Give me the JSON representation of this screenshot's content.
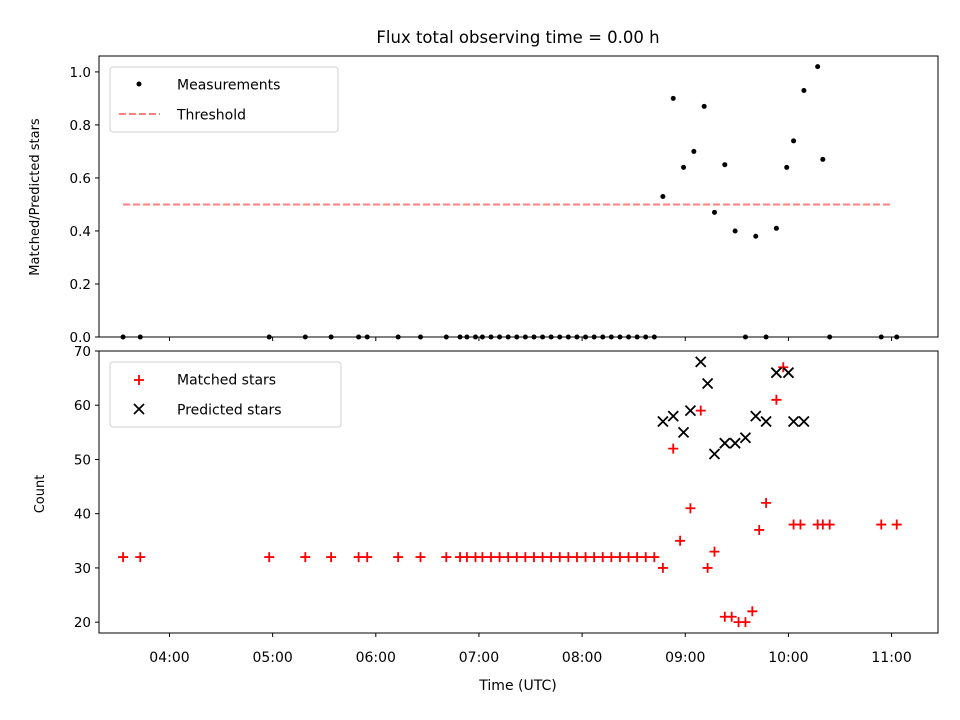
{
  "title": "Flux total observing time = 0.00 h",
  "colors": {
    "measurement": "#000000",
    "threshold": "#ff7f7f",
    "matched": "#ff0000",
    "predicted": "#000000"
  },
  "chart_data": [
    {
      "type": "scatter",
      "ylabel": "Matched/Predicted stars",
      "ylim": [
        0,
        1.06
      ],
      "yticks": [
        "0.0",
        "0.2",
        "0.4",
        "0.6",
        "0.8",
        "1.0"
      ],
      "xlim": [
        "03:19",
        "11:27"
      ],
      "grid": false,
      "legend": {
        "position": "top-left",
        "entries": [
          "Measurements",
          "Threshold"
        ]
      },
      "threshold": {
        "name": "Threshold",
        "y": 0.5,
        "x": [
          "03:33",
          "10:59"
        ]
      },
      "series": [
        {
          "name": "Measurements",
          "marker": "dot",
          "x": [
            "03:33",
            "03:43",
            "04:58",
            "05:19",
            "05:34",
            "05:50",
            "05:55",
            "06:13",
            "06:26",
            "06:41",
            "06:49",
            "06:53",
            "06:58",
            "07:02",
            "07:07",
            "07:12",
            "07:17",
            "07:22",
            "07:27",
            "07:32",
            "07:37",
            "07:42",
            "07:47",
            "07:52",
            "07:57",
            "08:02",
            "08:07",
            "08:12",
            "08:17",
            "08:22",
            "08:27",
            "08:32",
            "08:37",
            "08:42",
            "08:47",
            "08:53",
            "08:59",
            "09:05",
            "09:11",
            "09:17",
            "09:23",
            "09:29",
            "09:35",
            "09:41",
            "09:47",
            "09:53",
            "09:59",
            "10:03",
            "10:09",
            "10:17",
            "10:20",
            "10:24",
            "10:54",
            "11:03"
          ],
          "y": [
            0,
            0,
            0,
            0,
            0,
            0,
            0,
            0,
            0,
            0,
            0,
            0,
            0,
            0,
            0,
            0,
            0,
            0,
            0,
            0,
            0,
            0,
            0,
            0,
            0,
            0,
            0,
            0,
            0,
            0,
            0,
            0,
            0,
            0,
            0.53,
            0.9,
            0.64,
            0.7,
            0.87,
            0.47,
            0.65,
            0.4,
            0,
            0.38,
            0,
            0.41,
            0.64,
            0.74,
            0.93,
            1.02,
            0.67,
            0,
            0,
            0
          ]
        }
      ]
    },
    {
      "type": "scatter",
      "xlabel": "Time (UTC)",
      "ylabel": "Count",
      "ylim": [
        18,
        70
      ],
      "yticks": [
        "20",
        "30",
        "40",
        "50",
        "60",
        "70"
      ],
      "xlim": [
        "03:19",
        "11:27"
      ],
      "xticks": [
        "04:00",
        "05:00",
        "06:00",
        "07:00",
        "08:00",
        "09:00",
        "10:00",
        "11:00"
      ],
      "grid": false,
      "legend": {
        "position": "top-left",
        "entries": [
          "Matched stars",
          "Predicted stars"
        ]
      },
      "series": [
        {
          "name": "Matched stars",
          "marker": "plus",
          "x": [
            "03:33",
            "03:43",
            "04:58",
            "05:19",
            "05:34",
            "05:50",
            "05:55",
            "06:13",
            "06:26",
            "06:41",
            "06:49",
            "06:53",
            "06:58",
            "07:02",
            "07:07",
            "07:12",
            "07:17",
            "07:22",
            "07:27",
            "07:32",
            "07:37",
            "07:42",
            "07:47",
            "07:52",
            "07:57",
            "08:02",
            "08:07",
            "08:12",
            "08:17",
            "08:22",
            "08:27",
            "08:32",
            "08:37",
            "08:42",
            "08:47",
            "08:53",
            "08:57",
            "09:03",
            "09:09",
            "09:13",
            "09:17",
            "09:23",
            "09:27",
            "09:31",
            "09:35",
            "09:39",
            "09:43",
            "09:47",
            "09:53",
            "09:57",
            "10:03",
            "10:07",
            "10:17",
            "10:20",
            "10:24",
            "10:54",
            "11:03"
          ],
          "y": [
            32,
            32,
            32,
            32,
            32,
            32,
            32,
            32,
            32,
            32,
            32,
            32,
            32,
            32,
            32,
            32,
            32,
            32,
            32,
            32,
            32,
            32,
            32,
            32,
            32,
            32,
            32,
            32,
            32,
            32,
            32,
            32,
            32,
            32,
            30,
            52,
            35,
            41,
            59,
            30,
            33,
            21,
            21,
            20,
            20,
            22,
            37,
            42,
            61,
            67,
            38,
            38,
            38,
            38,
            38,
            38,
            38
          ]
        },
        {
          "name": "Predicted stars",
          "marker": "x",
          "x": [
            "08:47",
            "08:53",
            "08:59",
            "09:03",
            "09:09",
            "09:13",
            "09:17",
            "09:23",
            "09:29",
            "09:35",
            "09:41",
            "09:47",
            "09:53",
            "10:00",
            "10:03",
            "10:09"
          ],
          "y": [
            57,
            58,
            55,
            59,
            68,
            64,
            51,
            53,
            53,
            54,
            58,
            57,
            66,
            66,
            57,
            57
          ]
        }
      ]
    }
  ]
}
